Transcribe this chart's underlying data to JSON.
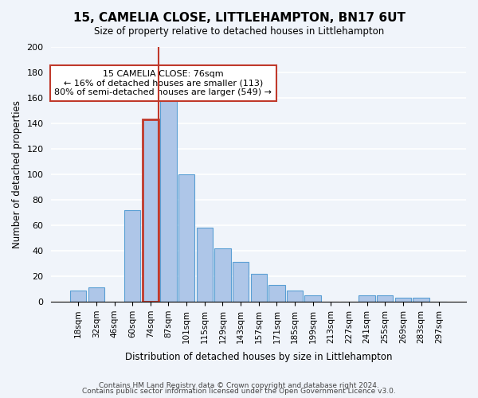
{
  "title": "15, CAMELIA CLOSE, LITTLEHAMPTON, BN17 6UT",
  "subtitle": "Size of property relative to detached houses in Littlehampton",
  "xlabel": "Distribution of detached houses by size in Littlehampton",
  "ylabel": "Number of detached properties",
  "footer_line1": "Contains HM Land Registry data © Crown copyright and database right 2024.",
  "footer_line2": "Contains public sector information licensed under the Open Government Licence v3.0.",
  "bin_labels": [
    "18sqm",
    "32sqm",
    "46sqm",
    "60sqm",
    "74sqm",
    "87sqm",
    "101sqm",
    "115sqm",
    "129sqm",
    "143sqm",
    "157sqm",
    "171sqm",
    "185sqm",
    "199sqm",
    "213sqm",
    "227sqm",
    "241sqm",
    "255sqm",
    "269sqm",
    "283sqm",
    "297sqm"
  ],
  "bar_heights": [
    9,
    11,
    0,
    72,
    143,
    168,
    100,
    58,
    42,
    31,
    22,
    13,
    9,
    5,
    0,
    0,
    5,
    5,
    3,
    3,
    0
  ],
  "bar_color": "#aec6e8",
  "bar_edge_color": "#5a9fd4",
  "highlight_bar_index": 4,
  "highlight_color": "#c0392b",
  "marker_line_index": 4,
  "ylim": [
    0,
    200
  ],
  "yticks": [
    0,
    20,
    40,
    60,
    80,
    100,
    120,
    140,
    160,
    180,
    200
  ],
  "annotation_title": "15 CAMELIA CLOSE: 76sqm",
  "annotation_line1": "← 16% of detached houses are smaller (113)",
  "annotation_line2": "80% of semi-detached houses are larger (549) →",
  "annotation_box_color": "#ffffff",
  "annotation_box_edge_color": "#c0392b",
  "bg_color": "#f0f4fa"
}
